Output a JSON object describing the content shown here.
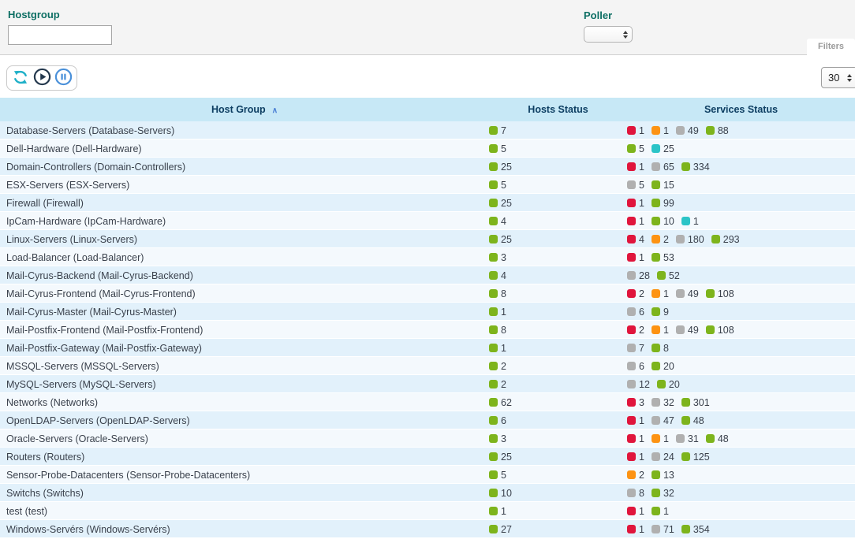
{
  "filter_panel": {
    "hostgroup": {
      "label": "Hostgroup",
      "value": "",
      "placeholder": ""
    },
    "poller": {
      "label": "Poller",
      "value": ""
    },
    "filters_tab": "Filters"
  },
  "toolbar": {
    "refresh_icon": "refresh",
    "play_icon": "play",
    "pause_icon": "pause",
    "page_size": "30"
  },
  "table": {
    "columns": [
      {
        "label": "Host Group",
        "sorted": "asc"
      },
      {
        "label": "Hosts Status"
      },
      {
        "label": "Services Status"
      }
    ],
    "sort_indicator": "∧",
    "status_colors": {
      "green": "#7db41c",
      "red": "#e0153c",
      "orange": "#fd9313",
      "gray": "#b0b0b0",
      "cyan": "#2bc4c7"
    },
    "rows": [
      {
        "name": "Database-Servers (Database-Servers)",
        "hosts": [
          [
            "green",
            7
          ]
        ],
        "services": [
          [
            "red",
            1
          ],
          [
            "orange",
            1
          ],
          [
            "gray",
            49
          ],
          [
            "green",
            88
          ]
        ]
      },
      {
        "name": "Dell-Hardware (Dell-Hardware)",
        "hosts": [
          [
            "green",
            5
          ]
        ],
        "services": [
          [
            "green",
            5
          ],
          [
            "cyan",
            25
          ]
        ]
      },
      {
        "name": "Domain-Controllers (Domain-Controllers)",
        "hosts": [
          [
            "green",
            25
          ]
        ],
        "services": [
          [
            "red",
            1
          ],
          [
            "gray",
            65
          ],
          [
            "green",
            334
          ]
        ]
      },
      {
        "name": "ESX-Servers (ESX-Servers)",
        "hosts": [
          [
            "green",
            5
          ]
        ],
        "services": [
          [
            "gray",
            5
          ],
          [
            "green",
            15
          ]
        ]
      },
      {
        "name": "Firewall (Firewall)",
        "hosts": [
          [
            "green",
            25
          ]
        ],
        "services": [
          [
            "red",
            1
          ],
          [
            "green",
            99
          ]
        ]
      },
      {
        "name": "IpCam-Hardware (IpCam-Hardware)",
        "hosts": [
          [
            "green",
            4
          ]
        ],
        "services": [
          [
            "red",
            1
          ],
          [
            "green",
            10
          ],
          [
            "cyan",
            1
          ]
        ]
      },
      {
        "name": "Linux-Servers (Linux-Servers)",
        "hosts": [
          [
            "green",
            25
          ]
        ],
        "services": [
          [
            "red",
            4
          ],
          [
            "orange",
            2
          ],
          [
            "gray",
            180
          ],
          [
            "green",
            293
          ]
        ]
      },
      {
        "name": "Load-Balancer (Load-Balancer)",
        "hosts": [
          [
            "green",
            3
          ]
        ],
        "services": [
          [
            "red",
            1
          ],
          [
            "green",
            53
          ]
        ]
      },
      {
        "name": "Mail-Cyrus-Backend (Mail-Cyrus-Backend)",
        "hosts": [
          [
            "green",
            4
          ]
        ],
        "services": [
          [
            "gray",
            28
          ],
          [
            "green",
            52
          ]
        ]
      },
      {
        "name": "Mail-Cyrus-Frontend (Mail-Cyrus-Frontend)",
        "hosts": [
          [
            "green",
            8
          ]
        ],
        "services": [
          [
            "red",
            2
          ],
          [
            "orange",
            1
          ],
          [
            "gray",
            49
          ],
          [
            "green",
            108
          ]
        ]
      },
      {
        "name": "Mail-Cyrus-Master (Mail-Cyrus-Master)",
        "hosts": [
          [
            "green",
            1
          ]
        ],
        "services": [
          [
            "gray",
            6
          ],
          [
            "green",
            9
          ]
        ]
      },
      {
        "name": "Mail-Postfix-Frontend (Mail-Postfix-Frontend)",
        "hosts": [
          [
            "green",
            8
          ]
        ],
        "services": [
          [
            "red",
            2
          ],
          [
            "orange",
            1
          ],
          [
            "gray",
            49
          ],
          [
            "green",
            108
          ]
        ]
      },
      {
        "name": "Mail-Postfix-Gateway (Mail-Postfix-Gateway)",
        "hosts": [
          [
            "green",
            1
          ]
        ],
        "services": [
          [
            "gray",
            7
          ],
          [
            "green",
            8
          ]
        ]
      },
      {
        "name": "MSSQL-Servers (MSSQL-Servers)",
        "hosts": [
          [
            "green",
            2
          ]
        ],
        "services": [
          [
            "gray",
            6
          ],
          [
            "green",
            20
          ]
        ]
      },
      {
        "name": "MySQL-Servers (MySQL-Servers)",
        "hosts": [
          [
            "green",
            2
          ]
        ],
        "services": [
          [
            "gray",
            12
          ],
          [
            "green",
            20
          ]
        ]
      },
      {
        "name": "Networks (Networks)",
        "hosts": [
          [
            "green",
            62
          ]
        ],
        "services": [
          [
            "red",
            3
          ],
          [
            "gray",
            32
          ],
          [
            "green",
            301
          ]
        ]
      },
      {
        "name": "OpenLDAP-Servers (OpenLDAP-Servers)",
        "hosts": [
          [
            "green",
            6
          ]
        ],
        "services": [
          [
            "red",
            1
          ],
          [
            "gray",
            47
          ],
          [
            "green",
            48
          ]
        ]
      },
      {
        "name": "Oracle-Servers (Oracle-Servers)",
        "hosts": [
          [
            "green",
            3
          ]
        ],
        "services": [
          [
            "red",
            1
          ],
          [
            "orange",
            1
          ],
          [
            "gray",
            31
          ],
          [
            "green",
            48
          ]
        ]
      },
      {
        "name": "Routers (Routers)",
        "hosts": [
          [
            "green",
            25
          ]
        ],
        "services": [
          [
            "red",
            1
          ],
          [
            "gray",
            24
          ],
          [
            "green",
            125
          ]
        ]
      },
      {
        "name": "Sensor-Probe-Datacenters (Sensor-Probe-Datacenters)",
        "hosts": [
          [
            "green",
            5
          ]
        ],
        "services": [
          [
            "orange",
            2
          ],
          [
            "green",
            13
          ]
        ]
      },
      {
        "name": "Switchs (Switchs)",
        "hosts": [
          [
            "green",
            10
          ]
        ],
        "services": [
          [
            "gray",
            8
          ],
          [
            "green",
            32
          ]
        ]
      },
      {
        "name": "test (test)",
        "hosts": [
          [
            "green",
            1
          ]
        ],
        "services": [
          [
            "red",
            1
          ],
          [
            "green",
            1
          ]
        ]
      },
      {
        "name": "Windows-Servérs (Windows-Servérs)",
        "hosts": [
          [
            "green",
            27
          ]
        ],
        "services": [
          [
            "red",
            1
          ],
          [
            "gray",
            71
          ],
          [
            "green",
            354
          ]
        ]
      }
    ]
  }
}
